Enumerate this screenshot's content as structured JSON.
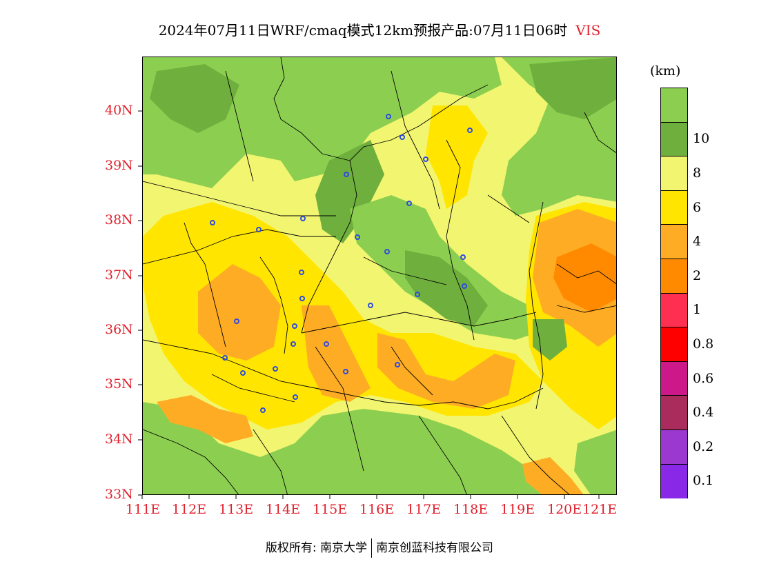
{
  "title": {
    "main": "2024年07月11日WRF/cmaq模式12km预报产品:07月11日06时",
    "variable": "VIS"
  },
  "axes": {
    "longitude_ticks": [
      "111E",
      "112E",
      "113E",
      "114E",
      "115E",
      "116E",
      "117E",
      "118E",
      "119E",
      "120E",
      "121E"
    ],
    "latitude_ticks": [
      "33N",
      "34N",
      "35N",
      "36N",
      "37N",
      "38N",
      "39N",
      "40N"
    ]
  },
  "legend": {
    "unit": "(km)",
    "levels": [
      {
        "label": "",
        "color": "#8ccf50"
      },
      {
        "label": "10",
        "color": "#6faf3d"
      },
      {
        "label": "8",
        "color": "#f2f570"
      },
      {
        "label": "6",
        "color": "#ffe500"
      },
      {
        "label": "4",
        "color": "#ffac25"
      },
      {
        "label": "2",
        "color": "#ff8a00"
      },
      {
        "label": "1",
        "color": "#ff2f52"
      },
      {
        "label": "0.8",
        "color": "#ff0000"
      },
      {
        "label": "0.6",
        "color": "#cc1889"
      },
      {
        "label": "0.4",
        "color": "#aa2c5c"
      },
      {
        "label": "0.2",
        "color": "#9a38d0"
      },
      {
        "label": "0.1",
        "color": "#8a28e8"
      }
    ]
  },
  "colors": {
    "tick_label": "#e0202c",
    "green": "#8ccf50",
    "dark_green": "#6faf3d",
    "light_yellow": "#f2f570",
    "yellow": "#ffe500",
    "light_orange": "#ffac25",
    "orange": "#ff8a00",
    "city_marker": "#2d4be0"
  },
  "footer": {
    "left": "版权所有: 南京大学",
    "right": "南京创蓝科技有限公司"
  }
}
